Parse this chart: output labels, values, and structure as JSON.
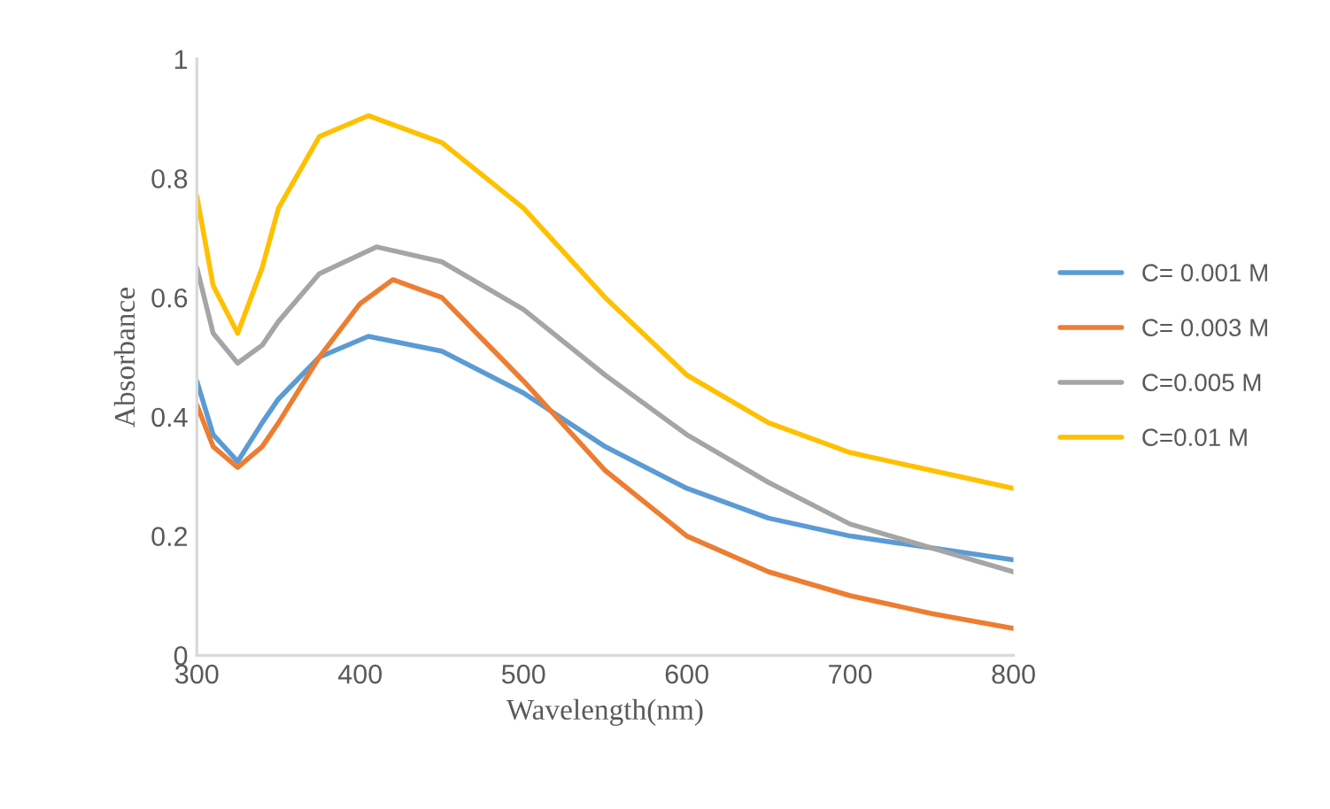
{
  "chart_data": {
    "type": "line",
    "xlabel": "Wavelength(nm)",
    "ylabel": "Absorbance",
    "xlim": [
      300,
      800
    ],
    "ylim": [
      0,
      1
    ],
    "xticks": [
      300,
      400,
      500,
      600,
      700,
      800
    ],
    "yticks": [
      0,
      0.2,
      0.4,
      0.6,
      0.8,
      1
    ],
    "grid": false,
    "legend": "right",
    "marker": "none",
    "line_style": "solid",
    "series": [
      {
        "name": "C= 0.001 M",
        "color": "#5b9bd5",
        "x": [
          300,
          310,
          325,
          340,
          350,
          375,
          405,
          450,
          500,
          550,
          600,
          650,
          700,
          750,
          800
        ],
        "values": [
          0.46,
          0.37,
          0.325,
          0.39,
          0.43,
          0.5,
          0.535,
          0.51,
          0.44,
          0.35,
          0.28,
          0.23,
          0.2,
          0.18,
          0.16
        ]
      },
      {
        "name": "C= 0.003 M",
        "color": "#ed7d31",
        "x": [
          300,
          310,
          325,
          340,
          350,
          375,
          400,
          420,
          450,
          500,
          550,
          600,
          650,
          700,
          750,
          800
        ],
        "values": [
          0.42,
          0.35,
          0.315,
          0.35,
          0.39,
          0.5,
          0.59,
          0.63,
          0.6,
          0.46,
          0.31,
          0.2,
          0.14,
          0.1,
          0.07,
          0.045
        ]
      },
      {
        "name": "C=0.005 M",
        "color": "#a5a5a5",
        "x": [
          300,
          310,
          325,
          340,
          350,
          375,
          410,
          450,
          500,
          550,
          600,
          650,
          700,
          750,
          800
        ],
        "values": [
          0.65,
          0.54,
          0.49,
          0.52,
          0.56,
          0.64,
          0.685,
          0.66,
          0.58,
          0.47,
          0.37,
          0.29,
          0.22,
          0.18,
          0.14
        ]
      },
      {
        "name": "C=0.01 M",
        "color": "#ffc000",
        "x": [
          300,
          310,
          325,
          340,
          350,
          375,
          405,
          450,
          500,
          550,
          600,
          650,
          700,
          750,
          800
        ],
        "values": [
          0.77,
          0.62,
          0.54,
          0.65,
          0.75,
          0.87,
          0.905,
          0.86,
          0.75,
          0.6,
          0.47,
          0.39,
          0.34,
          0.31,
          0.28
        ]
      }
    ]
  }
}
